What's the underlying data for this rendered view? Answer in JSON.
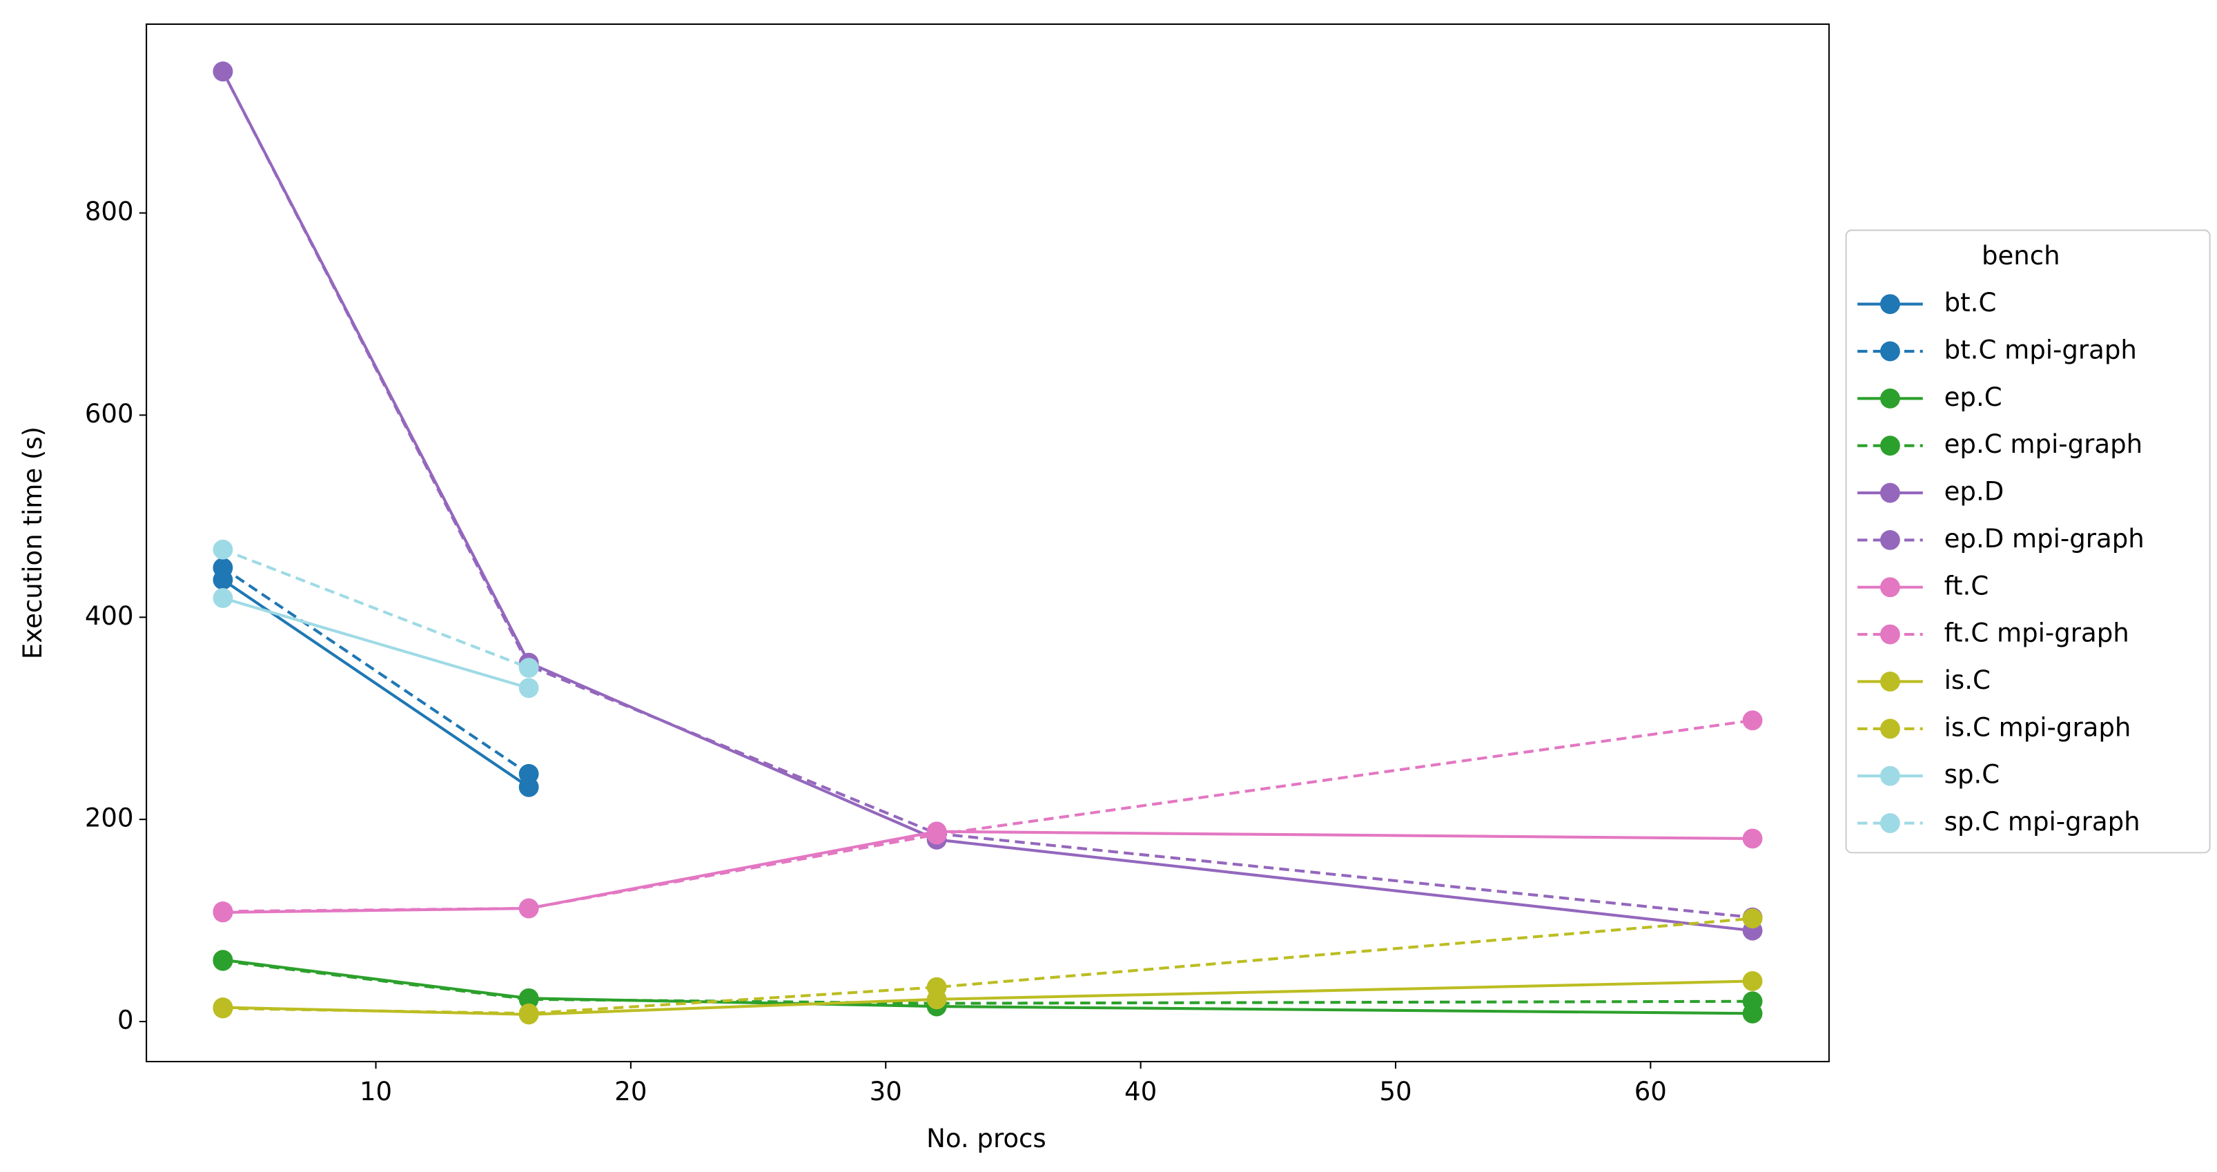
{
  "chart_data": {
    "type": "line",
    "xlabel": "No. procs",
    "ylabel": "Execution time (s)",
    "xlim": [
      1,
      67
    ],
    "xticks": [
      10,
      20,
      30,
      40,
      50,
      60
    ],
    "ylim": [
      -39.6,
      986.8
    ],
    "yticks": [
      0,
      200,
      400,
      600,
      800
    ],
    "grid": false,
    "legend_title": "bench",
    "legend_position": "outside-right",
    "series": [
      {
        "name": "bt.C",
        "color": "#1f77b4",
        "linestyle": "solid",
        "x": [
          4,
          16
        ],
        "values": [
          437,
          232
        ]
      },
      {
        "name": "bt.C mpi-graph",
        "color": "#1f77b4",
        "linestyle": "dashed",
        "x": [
          4,
          16
        ],
        "values": [
          449,
          245
        ]
      },
      {
        "name": "ep.C",
        "color": "#2ca02c",
        "linestyle": "solid",
        "x": [
          4,
          16,
          32,
          64
        ],
        "values": [
          61,
          23,
          15,
          8
        ]
      },
      {
        "name": "ep.C mpi-graph",
        "color": "#2ca02c",
        "linestyle": "dashed",
        "x": [
          4,
          16,
          32,
          64
        ],
        "values": [
          60,
          22,
          18,
          20
        ]
      },
      {
        "name": "ep.D",
        "color": "#9467bd",
        "linestyle": "solid",
        "x": [
          4,
          16,
          32,
          64
        ],
        "values": [
          940,
          355,
          180,
          90
        ]
      },
      {
        "name": "ep.D mpi-graph",
        "color": "#9467bd",
        "linestyle": "dashed",
        "x": [
          4,
          16,
          32,
          64
        ],
        "values": [
          940,
          352,
          186,
          103
        ]
      },
      {
        "name": "ft.C",
        "color": "#e377c2",
        "linestyle": "solid",
        "x": [
          4,
          16,
          32,
          64
        ],
        "values": [
          108,
          112,
          188,
          181
        ]
      },
      {
        "name": "ft.C mpi-graph",
        "color": "#e377c2",
        "linestyle": "dashed",
        "x": [
          4,
          16,
          32,
          64
        ],
        "values": [
          109,
          112,
          185,
          298
        ]
      },
      {
        "name": "is.C",
        "color": "#bcbd22",
        "linestyle": "solid",
        "x": [
          4,
          16,
          32,
          64
        ],
        "values": [
          14,
          7,
          22,
          40
        ]
      },
      {
        "name": "is.C mpi-graph",
        "color": "#bcbd22",
        "linestyle": "dashed",
        "x": [
          4,
          16,
          32,
          64
        ],
        "values": [
          13,
          8,
          34,
          102
        ]
      },
      {
        "name": "sp.C",
        "color": "#9edae5",
        "linestyle": "solid",
        "x": [
          4,
          16
        ],
        "values": [
          419,
          330
        ]
      },
      {
        "name": "sp.C mpi-graph",
        "color": "#9edae5",
        "linestyle": "dashed",
        "x": [
          4,
          16
        ],
        "values": [
          467,
          350
        ]
      }
    ]
  }
}
